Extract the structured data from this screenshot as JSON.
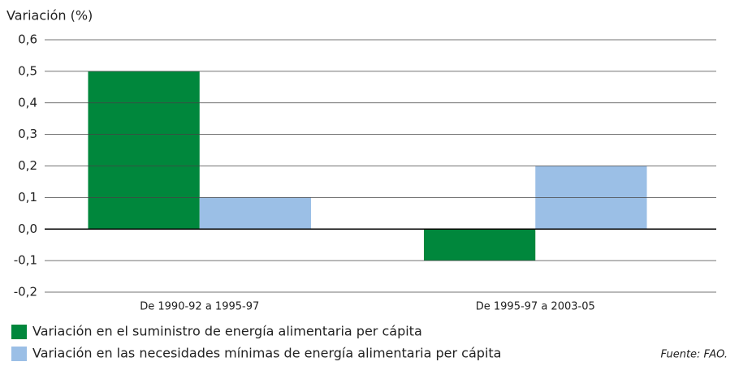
{
  "chart_data": {
    "type": "bar",
    "y_label": "Variación (%)",
    "categories": [
      "De 1990-92 a 1995-97",
      "De 1995-97 a 2003-05"
    ],
    "series": [
      {
        "name": "Variación en el suministro de energía alimentaria per cápita",
        "color": "#00873c",
        "values": [
          0.5,
          -0.1
        ]
      },
      {
        "name": "Variación en las necesidades mínimas de energía alimentaria per cápita",
        "color": "#9bbfe6",
        "values": [
          0.1,
          0.2
        ]
      }
    ],
    "ylim": [
      -0.2,
      0.6
    ],
    "yticks": [
      {
        "value": -0.2,
        "label": "-0,2"
      },
      {
        "value": -0.1,
        "label": "-0,1"
      },
      {
        "value": 0,
        "label": "0,0"
      },
      {
        "value": 0.1,
        "label": "0,1"
      },
      {
        "value": 0.2,
        "label": "0,2"
      },
      {
        "value": 0.3,
        "label": "0,3"
      },
      {
        "value": 0.4,
        "label": "0,4"
      },
      {
        "value": 0.5,
        "label": "0,5"
      },
      {
        "value": 0.6,
        "label": "0,6"
      }
    ],
    "grid": true,
    "source": "Fuente: FAO."
  }
}
